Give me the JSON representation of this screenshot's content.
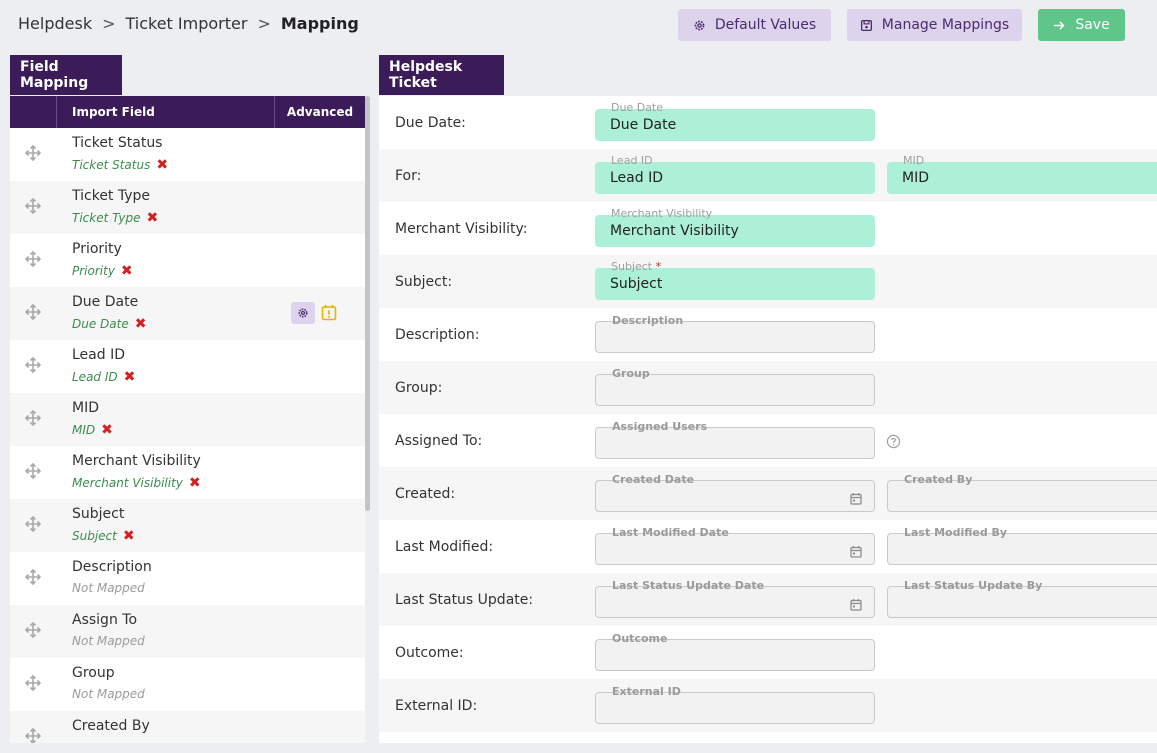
{
  "breadcrumb": {
    "items": [
      "Helpdesk",
      "Ticket Importer",
      "Mapping"
    ],
    "separator": ">"
  },
  "toolbar": {
    "default_values_label": "Default Values",
    "manage_mappings_label": "Manage Mappings",
    "save_label": "Save"
  },
  "left": {
    "tab_label": "Field Mapping",
    "columns": {
      "import_field": "Import Field",
      "advanced": "Advanced"
    },
    "rows": [
      {
        "name": "Ticket Status",
        "mapped": "Ticket Status"
      },
      {
        "name": "Ticket Type",
        "mapped": "Ticket Type"
      },
      {
        "name": "Priority",
        "mapped": "Priority"
      },
      {
        "name": "Due Date",
        "mapped": "Due Date"
      },
      {
        "name": "Lead ID",
        "mapped": "Lead ID"
      },
      {
        "name": "MID",
        "mapped": "MID"
      },
      {
        "name": "Merchant Visibility",
        "mapped": "Merchant Visibility"
      },
      {
        "name": "Subject",
        "mapped": "Subject"
      },
      {
        "name": "Description",
        "mapped": "Not Mapped"
      },
      {
        "name": "Assign To",
        "mapped": "Not Mapped"
      },
      {
        "name": "Group",
        "mapped": "Not Mapped"
      },
      {
        "name": "Created By",
        "mapped": ""
      }
    ]
  },
  "right": {
    "tab_label": "Helpdesk Ticket",
    "rows": [
      {
        "label": "Due Date:",
        "f1": {
          "float": "Due Date",
          "value": "Due Date"
        }
      },
      {
        "label": "For:",
        "f1": {
          "float": "Lead ID",
          "value": "Lead ID"
        },
        "f2": {
          "float": "MID",
          "value": "MID"
        }
      },
      {
        "label": "Merchant Visibility:",
        "f1": {
          "float": "Merchant Visibility",
          "value": "Merchant Visibility"
        }
      },
      {
        "label": "Subject:",
        "f1": {
          "float": "Subject",
          "required": "*",
          "value": "Subject"
        }
      },
      {
        "label": "Description:",
        "f1": {
          "float": "Description"
        }
      },
      {
        "label": "Group:",
        "f1": {
          "float": "Group"
        }
      },
      {
        "label": "Assigned To:",
        "f1": {
          "float": "Assigned Users"
        }
      },
      {
        "label": "Created:",
        "f1": {
          "float": "Created Date"
        },
        "f2": {
          "float": "Created By"
        }
      },
      {
        "label": "Last Modified:",
        "f1": {
          "float": "Last Modified Date"
        },
        "f2": {
          "float": "Last Modified By"
        }
      },
      {
        "label": "Last Status Update:",
        "f1": {
          "float": "Last Status Update Date"
        },
        "f2": {
          "float": "Last Status Update By"
        }
      },
      {
        "label": "Outcome:",
        "f1": {
          "float": "Outcome"
        }
      },
      {
        "label": "External ID:",
        "f1": {
          "float": "External ID"
        }
      }
    ]
  },
  "colors": {
    "header_purple": "#3b1c59",
    "button_lavender": "#ddd3ec",
    "save_green": "#5fc68a",
    "mapped_field_bg": "#acf0d8",
    "mapped_text": "#3b8c4f",
    "remove_red": "#d32020"
  },
  "icons": [
    "cog-icon",
    "save-disk-icon",
    "arrow-right-icon",
    "drag-move-icon",
    "remove-x-icon",
    "calendar-alert-icon",
    "calendar-icon",
    "help-circle-icon"
  ]
}
